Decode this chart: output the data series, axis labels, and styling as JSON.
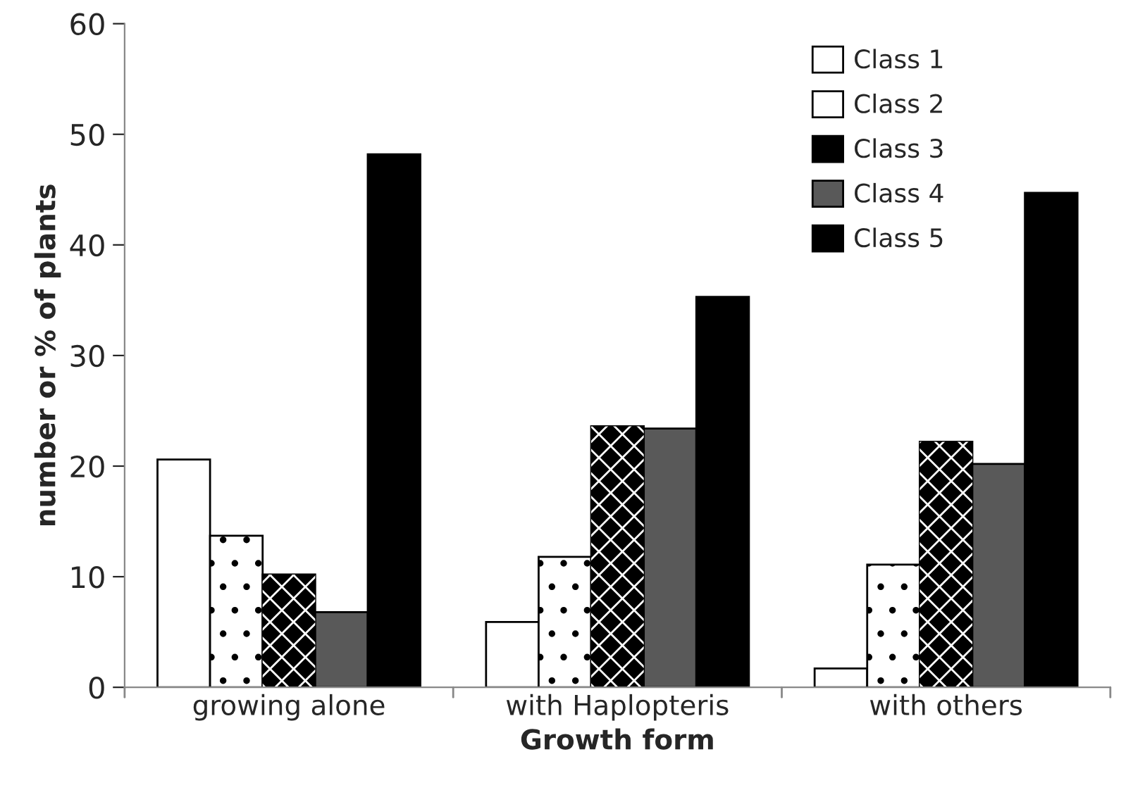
{
  "chart_data": {
    "type": "bar",
    "xlabel": "Growth form",
    "ylabel": "number or % of plants",
    "categories": [
      "growing alone",
      "with Haplopteris",
      "with others"
    ],
    "series": [
      {
        "name": "Class 1",
        "color": "#ffffff",
        "values": [
          20.6,
          5.9,
          1.7
        ]
      },
      {
        "name": "Class 2",
        "color": "#ffffff",
        "values": [
          13.7,
          11.8,
          11.1
        ]
      },
      {
        "name": "Class 3",
        "color": "#000000",
        "values": [
          10.2,
          23.6,
          22.2
        ]
      },
      {
        "name": "Class 4",
        "color": "#595959",
        "values": [
          6.8,
          23.4,
          20.2
        ]
      },
      {
        "name": "Class 5",
        "color": "#000000",
        "values": [
          48.2,
          35.3,
          44.7
        ]
      }
    ],
    "ylim": [
      0,
      60
    ],
    "yticks": [
      0,
      10,
      20,
      30,
      40,
      50,
      60
    ],
    "grid": false,
    "legend": "top right"
  }
}
